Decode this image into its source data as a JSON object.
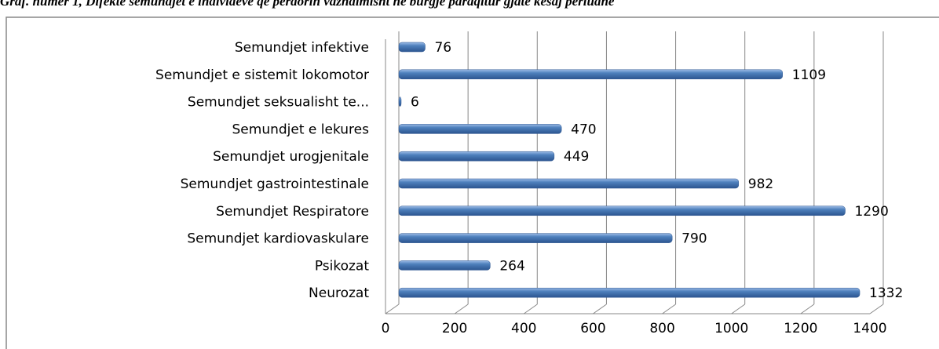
{
  "chart_data": {
    "type": "bar",
    "orientation": "horizontal",
    "title": "Graf. numer 1, Difekte semundjet e individeve që perdorin vazhdimisht në burgje paraqitur gjate kesaj periudhe",
    "categories": [
      "Semundjet infektive",
      "Semundjet e sistemit lokomotor",
      "Semundjet seksualisht te...",
      "Semundjet e lekures",
      "Semundjet urogjenitale",
      "Semundjet gastrointestinale",
      "Semundjet Respiratore",
      "Semundjet kardiovaskulare",
      "Psikozat",
      "Neurozat"
    ],
    "values": [
      76,
      1109,
      6,
      470,
      449,
      982,
      1290,
      790,
      264,
      1332
    ],
    "color": "#4a7ebb",
    "xlim": [
      0,
      1400
    ],
    "xticks": [
      0,
      200,
      400,
      600,
      800,
      1000,
      1200,
      1400
    ],
    "grid": true
  }
}
